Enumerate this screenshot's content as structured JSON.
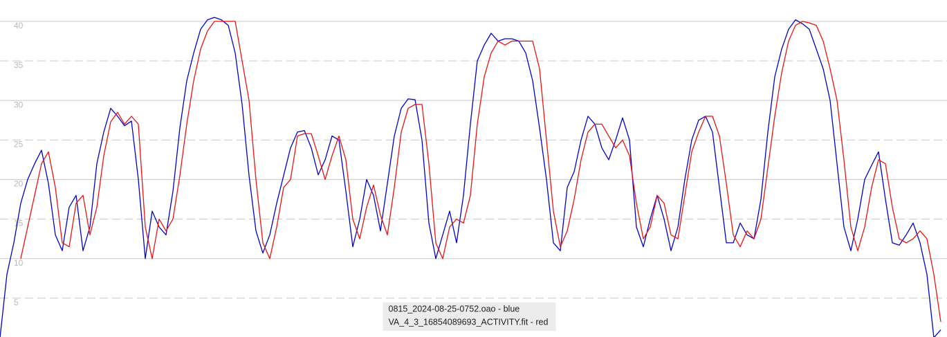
{
  "chart_data": {
    "type": "line",
    "ylim": [
      0,
      42.7
    ],
    "yticks": [
      5,
      10,
      15,
      20,
      25,
      30,
      35,
      40
    ],
    "grid": true,
    "legend_position": "bottom-center",
    "series": [
      {
        "name": "0815_2024-08-25-0752.oao - blue",
        "color": "#0000cc",
        "values": [
          0,
          8,
          12,
          17,
          20,
          22,
          23.7,
          19.5,
          13,
          11,
          16.5,
          18,
          11,
          14,
          22,
          26,
          29,
          28,
          26.8,
          27.4,
          20,
          10,
          16,
          14,
          13,
          18.5,
          26.5,
          32.5,
          36,
          39,
          40.2,
          40.5,
          40.2,
          39.5,
          36,
          29.5,
          20.5,
          13.5,
          10.7,
          13,
          17,
          20.5,
          24,
          26,
          26.2,
          24,
          20.6,
          22.5,
          25.5,
          25,
          18.5,
          11.5,
          15,
          20,
          18,
          13.5,
          19.5,
          25.5,
          29,
          30.2,
          30.1,
          25,
          14.5,
          10,
          13,
          16,
          12,
          18,
          27,
          35,
          37,
          38.5,
          37.5,
          37.8,
          37.8,
          37.5,
          36,
          32.5,
          26.5,
          20,
          12,
          11,
          19,
          21,
          25,
          28,
          27,
          24,
          22.5,
          25,
          27.8,
          25,
          14,
          11.5,
          15,
          18,
          15,
          11,
          14,
          20,
          25,
          27.5,
          28,
          26,
          19,
          12,
          12,
          14.5,
          13,
          12.5,
          17.5,
          26,
          33,
          36.5,
          39,
          40.2,
          39.7,
          39,
          36.5,
          34,
          30,
          22,
          14,
          11,
          15,
          20,
          21.8,
          23.5,
          17.5,
          12,
          11.7,
          13,
          14.5,
          12,
          8,
          0,
          1
        ]
      },
      {
        "name": "VA_4_3_16854089693_ACTIVITY.fit - red",
        "color": "#ee1111",
        "values": [
          null,
          null,
          null,
          10,
          14,
          18,
          22,
          23.5,
          19,
          12,
          11.5,
          17,
          18,
          13,
          16.5,
          23,
          27.3,
          28.5,
          27,
          28,
          27,
          14,
          10,
          15,
          13.5,
          15,
          20.5,
          27,
          32.5,
          36.5,
          38.8,
          40,
          40,
          40,
          40,
          35,
          30,
          20,
          12,
          10,
          14,
          19,
          20,
          25.5,
          25.8,
          25.8,
          23,
          20,
          23,
          25.5,
          22.5,
          15,
          12.5,
          16.5,
          19.3,
          15.5,
          13,
          19,
          26,
          29,
          29.5,
          29.5,
          22,
          12,
          10,
          14,
          15,
          14.5,
          18,
          27,
          33,
          36,
          37.5,
          37,
          37.5,
          37.5,
          37.5,
          37.5,
          34,
          25,
          16,
          11.5,
          13.5,
          17.5,
          22.5,
          26,
          27,
          27,
          25.5,
          24,
          25,
          23,
          17,
          12.5,
          14,
          18,
          17,
          13,
          12.5,
          18,
          23.5,
          26,
          28,
          28,
          25.5,
          19.5,
          13,
          11.5,
          13.5,
          12.5,
          15,
          21.5,
          28,
          33.5,
          37.5,
          39.5,
          40,
          39.8,
          39.5,
          37.5,
          34,
          30,
          22.5,
          14,
          11,
          14,
          19,
          22.5,
          22,
          16.5,
          12.5,
          12,
          12.5,
          13.5,
          12.5,
          8,
          2
        ]
      }
    ]
  }
}
